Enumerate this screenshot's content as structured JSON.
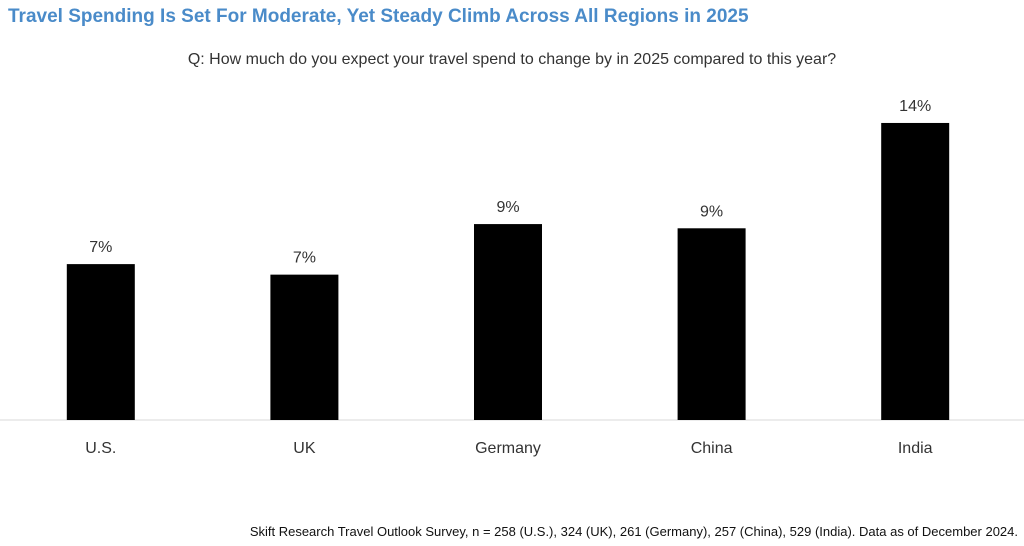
{
  "colors": {
    "title": "#4a8bc9",
    "bar": "#000000",
    "axis": "#d9d9d9"
  },
  "header": {
    "title": "Travel Spending Is Set For Moderate, Yet Steady Climb Across All Regions in 2025",
    "subtitle": "Q: How much do you expect your travel spend to change by in 2025 compared to this year?"
  },
  "footer": {
    "source": "Skift Research Travel Outlook Survey, n = 258 (U.S.), 324 (UK), 261 (Germany), 257 (China), 529 (India). Data as of December  2024."
  },
  "chart_data": {
    "type": "bar",
    "title": "Travel Spending Is Set For Moderate, Yet Steady Climb Across All Regions in 2025",
    "subtitle": "Q: How much do you expect your travel spend to change by in 2025 compared to this year?",
    "categories": [
      "U.S.",
      "UK",
      "Germany",
      "China",
      "India"
    ],
    "values": [
      7.4,
      6.9,
      9.3,
      9.1,
      14.1
    ],
    "data_labels": [
      "7%",
      "7%",
      "9%",
      "9%",
      "14%"
    ],
    "unit": "%",
    "ylim": [
      0,
      15
    ],
    "grid": false,
    "legend": "none"
  }
}
